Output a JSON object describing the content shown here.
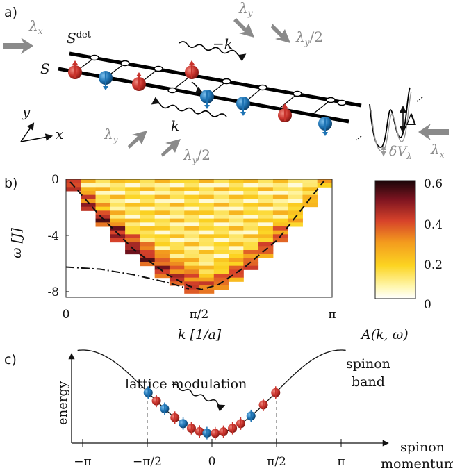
{
  "panel_a": {
    "label": "a)",
    "sdet_base": "S",
    "sdet_sup": "det",
    "s_label": "S",
    "lambda_sym": "λ",
    "sub_x": "x",
    "sub_y": "y",
    "half": "/2",
    "minus_k": "−k",
    "k": "k",
    "axis_y": "y",
    "axis_x": "x",
    "delta": "Δ",
    "delta_v": "δV",
    "delta_v_sub": "λ",
    "colors": {
      "spin_up": "#c8332c",
      "spin_down": "#1f74b4",
      "beam": "#8a8a8a"
    }
  },
  "panel_b": {
    "label": "b)",
    "colorbar_label": "A(k, ω)",
    "colorbar_ticks": [
      "0.6",
      "0.4",
      "0.2",
      "0"
    ],
    "chart_data": {
      "type": "heatmap",
      "xlabel": "k [1/a]",
      "ylabel": "ω [J]",
      "x_ticks": [
        "0",
        "π/2",
        "π"
      ],
      "y_ticks": [
        "0",
        "-4",
        "-8"
      ],
      "xlim": [
        0,
        3.1416
      ],
      "ylim": [
        -8.4,
        0
      ],
      "colorbar_range": [
        0,
        0.6
      ],
      "colormap": "afmhot_r",
      "dashed_curve": [
        [
          0.05,
          -0.2
        ],
        [
          0.4,
          -2.6
        ],
        [
          0.8,
          -5.0
        ],
        [
          1.2,
          -6.8
        ],
        [
          1.45,
          -7.6
        ],
        [
          1.6,
          -7.85
        ],
        [
          1.8,
          -7.5
        ],
        [
          2.1,
          -6.3
        ],
        [
          2.5,
          -4.3
        ],
        [
          2.8,
          -2.0
        ],
        [
          3.05,
          -0.1
        ]
      ],
      "dashdot_curve": [
        [
          0.0,
          -6.25
        ],
        [
          0.4,
          -6.4
        ],
        [
          0.8,
          -6.8
        ],
        [
          1.2,
          -7.35
        ],
        [
          1.45,
          -7.8
        ]
      ]
    }
  },
  "panel_c": {
    "label": "c)",
    "lattice_modulation": "lattice modulation",
    "spinon_band_1": "spinon",
    "spinon_band_2": "band",
    "ylabel": "energy",
    "xlabel_1": "spinon",
    "xlabel_2": "momentum",
    "x_ticks": [
      "−π",
      "−π/2",
      "0",
      "π/2",
      "π"
    ],
    "dots": [
      {
        "k": -1.55,
        "c": "down"
      },
      {
        "k": -1.35,
        "c": "up"
      },
      {
        "k": -1.15,
        "c": "down"
      },
      {
        "k": -0.9,
        "c": "up"
      },
      {
        "k": -0.7,
        "c": "down"
      },
      {
        "k": -0.5,
        "c": "up"
      },
      {
        "k": -0.3,
        "c": "up"
      },
      {
        "k": -0.12,
        "c": "down"
      },
      {
        "k": 0.08,
        "c": "up"
      },
      {
        "k": 0.28,
        "c": "up"
      },
      {
        "k": 0.5,
        "c": "up"
      },
      {
        "k": 0.7,
        "c": "up"
      },
      {
        "k": 0.95,
        "c": "down"
      },
      {
        "k": 1.25,
        "c": "up"
      },
      {
        "k": 1.55,
        "c": "up"
      }
    ]
  }
}
